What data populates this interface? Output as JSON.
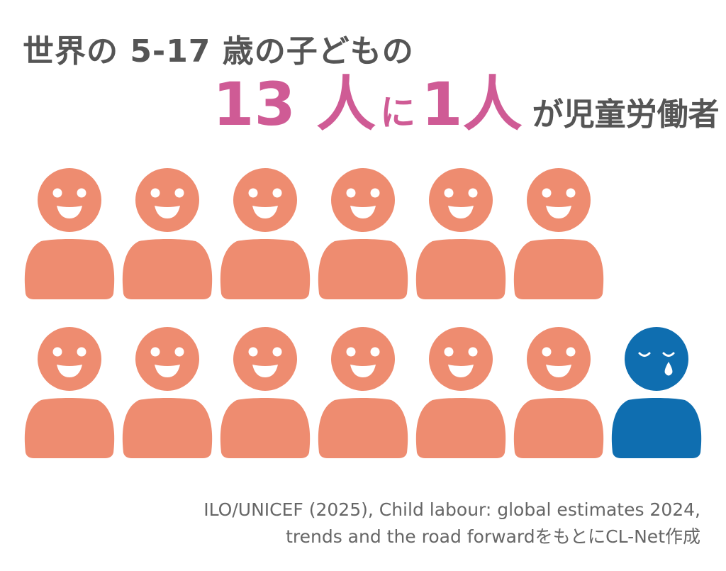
{
  "title": {
    "line1": "世界の 5-17 歳の子どもの",
    "ratio_a": "13 人",
    "connector": "に",
    "ratio_b": "1人",
    "suffix": "が児童労働者"
  },
  "figures": {
    "total": 13,
    "highlighted_count": 1,
    "happy_color": "#ee8c70",
    "sad_color": "#0f6eb0",
    "happy_icon": "smiling-child-icon",
    "sad_icon": "crying-child-icon"
  },
  "source": {
    "line1": "ILO/UNICEF (2025), Child labour: global estimates 2024,",
    "line2": "trends and the road forwardをもとにCL-Net作成"
  }
}
